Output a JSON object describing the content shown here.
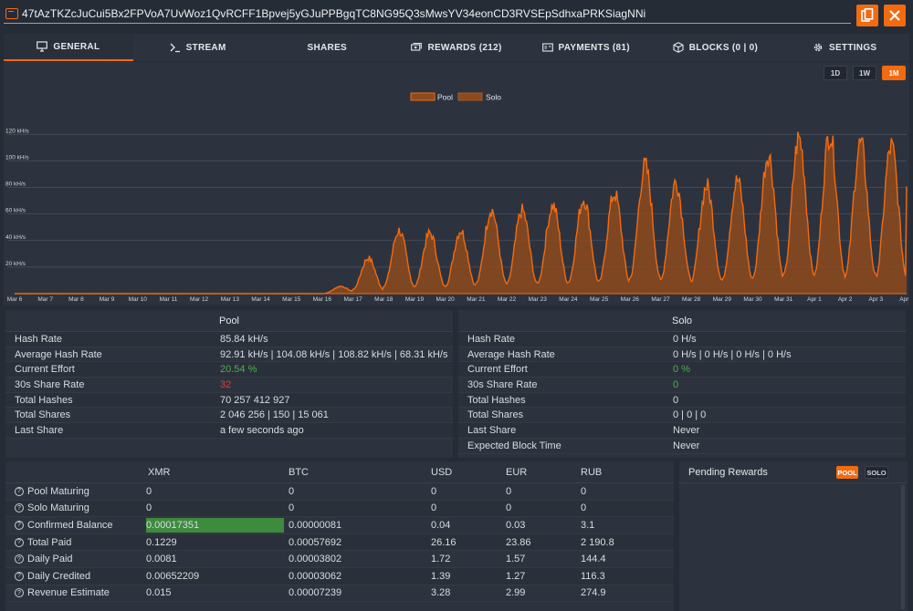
{
  "address": "47tAzTKZcJuCui5Bx2FPVoA7UvWoz1QvRCFF1Bpvej5yGJuPPBgqTC8NG95Q3sMwsYV34eonCD3RVSEpSdhxaPRKSiagNNi",
  "icons": {
    "address": "wallet-icon",
    "copy": "copy-icon",
    "close": "close-icon"
  },
  "colors": {
    "accent": "#f26b10",
    "good": "#4caf50",
    "bad": "#e53935"
  },
  "tabs": [
    {
      "label": "GENERAL",
      "icon": "monitor-icon"
    },
    {
      "label": "STREAM",
      "icon": "terminal-icon"
    },
    {
      "label": "SHARES",
      "icon": ""
    },
    {
      "label": "REWARDS (212)",
      "icon": "money-icon"
    },
    {
      "label": "PAYMENTS (81)",
      "icon": "card-icon"
    },
    {
      "label": "BLOCKS (0 | 0)",
      "icon": "cube-icon"
    },
    {
      "label": "SETTINGS",
      "icon": "gear-icon"
    }
  ],
  "range_buttons": [
    "1D",
    "1W",
    "1M"
  ],
  "range_selected": "1M",
  "chart_data": {
    "type": "area",
    "legend": [
      "Pool",
      "Solo"
    ],
    "legend_position": "top-center",
    "y_ticks": [
      "20 kH/s",
      "40 kH/s",
      "60 kH/s",
      "80 kH/s",
      "100 kH/s",
      "120 kH/s"
    ],
    "ylim": [
      0,
      125
    ],
    "x_ticks": [
      "Mar 6",
      "Mar 7",
      "Mar 8",
      "Mar 9",
      "Mar 10",
      "Mar 11",
      "Mar 12",
      "Mar 13",
      "Mar 14",
      "Mar 15",
      "Mar 16",
      "Mar 17",
      "Mar 18",
      "Mar 19",
      "Mar 20",
      "Mar 21",
      "Mar 22",
      "Mar 23",
      "Mar 24",
      "Mar 25",
      "Mar 26",
      "Mar 27",
      "Mar 28",
      "Mar 29",
      "Mar 30",
      "Mar 31",
      "Apr 1",
      "Apr 2",
      "Apr 3",
      "Apr 4"
    ],
    "series": [
      {
        "name": "Pool",
        "daily_peak_kHs": [
          0,
          0,
          0,
          0,
          0,
          0,
          0,
          0,
          0,
          0,
          0,
          10,
          27,
          48,
          46,
          48,
          64,
          63,
          67,
          72,
          76,
          97,
          85,
          82,
          86,
          106,
          118,
          122,
          114,
          112
        ]
      },
      {
        "name": "Solo",
        "daily_peak_kHs": [
          0,
          0,
          0,
          0,
          0,
          0,
          0,
          0,
          0,
          0,
          0,
          0,
          0,
          0,
          0,
          0,
          0,
          0,
          0,
          0,
          0,
          0,
          0,
          0,
          0,
          0,
          0,
          0,
          0,
          0
        ]
      }
    ],
    "grid": true
  },
  "pool": {
    "title": "Pool",
    "rows": [
      {
        "k": "Hash Rate",
        "v": "85.84 kH/s"
      },
      {
        "k": "Average Hash Rate",
        "v": "92.91 kH/s | 104.08 kH/s | 108.82 kH/s | 68.31 kH/s"
      },
      {
        "k": "Current Effort",
        "v": "20.54 %"
      },
      {
        "k": "30s Share Rate",
        "v": "32"
      },
      {
        "k": "Total Hashes",
        "v": "70 257 412 927"
      },
      {
        "k": "Total Shares",
        "v": "2 046 256 | 150 | 15 061"
      },
      {
        "k": "Last Share",
        "v": "a few seconds ago"
      }
    ]
  },
  "solo": {
    "title": "Solo",
    "rows": [
      {
        "k": "Hash Rate",
        "v": "0 H/s"
      },
      {
        "k": "Average Hash Rate",
        "v": "0 H/s | 0 H/s | 0 H/s | 0 H/s"
      },
      {
        "k": "Current Effort",
        "v": "0 %"
      },
      {
        "k": "30s Share Rate",
        "v": "0"
      },
      {
        "k": "Total Hashes",
        "v": "0"
      },
      {
        "k": "Total Shares",
        "v": "0 | 0 | 0"
      },
      {
        "k": "Last Share",
        "v": "Never"
      },
      {
        "k": "Expected Block Time",
        "v": "Never"
      }
    ]
  },
  "balances": {
    "headers": [
      "XMR",
      "BTC",
      "USD",
      "EUR",
      "RUB"
    ],
    "rows": [
      {
        "label": "Pool Maturing",
        "vals": [
          "0",
          "0",
          "0",
          "0",
          "0"
        ]
      },
      {
        "label": "Solo Maturing",
        "vals": [
          "0",
          "0",
          "0",
          "0",
          "0"
        ]
      },
      {
        "label": "Confirmed Balance",
        "vals": [
          "0.00017351",
          "0.00000081",
          "0.04",
          "0.03",
          "3.1"
        ],
        "payout_progress": 0.97
      },
      {
        "label": "Total Paid",
        "vals": [
          "0.1229",
          "0.00057692",
          "26.16",
          "23.86",
          "2 190.8"
        ]
      },
      {
        "label": "Daily Paid",
        "vals": [
          "0.0081",
          "0.00003802",
          "1.72",
          "1.57",
          "144.4"
        ]
      },
      {
        "label": "Daily Credited",
        "vals": [
          "0.00652209",
          "0.00003062",
          "1.39",
          "1.27",
          "116.3"
        ]
      },
      {
        "label": "Revenue Estimate",
        "vals": [
          "0.015",
          "0.00007239",
          "3.28",
          "2.99",
          "274.9"
        ]
      }
    ]
  },
  "pending": {
    "title": "Pending Rewards",
    "buttons": [
      "POOL",
      "SOLO"
    ],
    "selected": "POOL"
  }
}
